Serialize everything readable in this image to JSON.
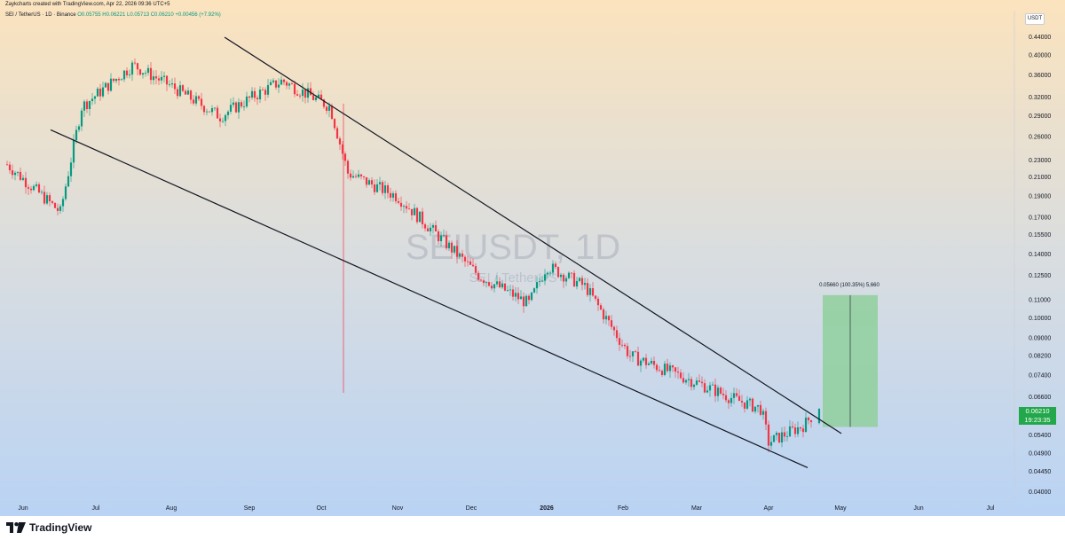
{
  "attribution": "Zaykcharts created with TradingView.com, Apr 22, 2026 09:36 UTC+5",
  "legend": {
    "symbol": "SEI / TetherUS · 1D · Binance",
    "open": "O0.05755",
    "high": "H0.06221",
    "low": "L0.05713",
    "close": "C0.06210",
    "change": "+0.00456 (+7.92%)"
  },
  "watermark": {
    "title": "SEIUSDT, 1D",
    "subtitle": "SEI / TetherUS"
  },
  "currency_label": "USDT",
  "price_tag": {
    "price": "0.06210",
    "countdown": "19:23:35"
  },
  "measure_label": "0.05660 (100.35%) 5,660",
  "brand": "TradingView",
  "colors": {
    "up": "#089981",
    "down": "#f23645",
    "bg_top": "#fbe3bd",
    "bg_bottom": "#b9d3f4",
    "measure_fill": "#8fcf9c",
    "price_tag": "#22a84a",
    "trendline": "#131722"
  },
  "chart_data": {
    "type": "candlestick",
    "title": "SEIUSDT, 1D",
    "scale": "log",
    "y_axis_ticks": [
      "0.44000",
      "0.40000",
      "0.36000",
      "0.32000",
      "0.29000",
      "0.26000",
      "0.23000",
      "0.21000",
      "0.19000",
      "0.17000",
      "0.15500",
      "0.14000",
      "0.12500",
      "0.11000",
      "0.10000",
      "0.09000",
      "0.08200",
      "0.07400",
      "0.06600",
      "0.05400",
      "0.04900",
      "0.04450",
      "0.04000"
    ],
    "x_axis_ticks": [
      "Jun",
      "Jul",
      "Aug",
      "Sep",
      "Oct",
      "Nov",
      "Dec",
      "2026",
      "Feb",
      "Mar",
      "Apr",
      "May",
      "Jun",
      "Jul"
    ],
    "price_anchors": [
      {
        "month": "Jun",
        "price": 0.225
      },
      {
        "month": "Jun-mid",
        "price": 0.175
      },
      {
        "month": "Jul-start",
        "price": 0.305
      },
      {
        "month": "Jul-end",
        "price": 0.38
      },
      {
        "month": "Aug",
        "price": 0.34
      },
      {
        "month": "Aug-mid",
        "price": 0.29
      },
      {
        "month": "Sep",
        "price": 0.32
      },
      {
        "month": "Sep-mid",
        "price": 0.35
      },
      {
        "month": "Oct",
        "price": 0.305
      },
      {
        "month": "Oct-crash",
        "price": 0.215
      },
      {
        "month": "Nov",
        "price": 0.19
      },
      {
        "month": "Nov-mid",
        "price": 0.15
      },
      {
        "month": "Dec",
        "price": 0.125
      },
      {
        "month": "Dec-end",
        "price": 0.108
      },
      {
        "month": "2026",
        "price": 0.132
      },
      {
        "month": "Jan-mid",
        "price": 0.118
      },
      {
        "month": "Feb",
        "price": 0.082
      },
      {
        "month": "Feb-mid",
        "price": 0.072
      },
      {
        "month": "Mar",
        "price": 0.065
      },
      {
        "month": "Mar-end",
        "price": 0.062
      },
      {
        "month": "Apr",
        "price": 0.052
      },
      {
        "month": "Apr-mid",
        "price": 0.057
      },
      {
        "month": "Apr-22",
        "price": 0.0621
      }
    ],
    "last": {
      "open": 0.05755,
      "high": 0.06221,
      "low": 0.05713,
      "close": 0.0621,
      "change": 0.00456,
      "change_pct": 7.92
    },
    "trendlines": [
      {
        "name": "upper",
        "from": {
          "date": "Aug-end",
          "price": 0.44
        },
        "to": {
          "date": "Apr-end",
          "price": 0.0545
        }
      },
      {
        "name": "lower",
        "from": {
          "date": "Jun-mid",
          "price": 0.27
        },
        "to": {
          "date": "Apr-end",
          "price": 0.0455
        }
      }
    ],
    "measurement": {
      "from_price": 0.0564,
      "to_price": 0.113,
      "change": 0.0566,
      "change_pct": 100.35,
      "ticks": 5660
    },
    "current_price": 0.0621
  }
}
